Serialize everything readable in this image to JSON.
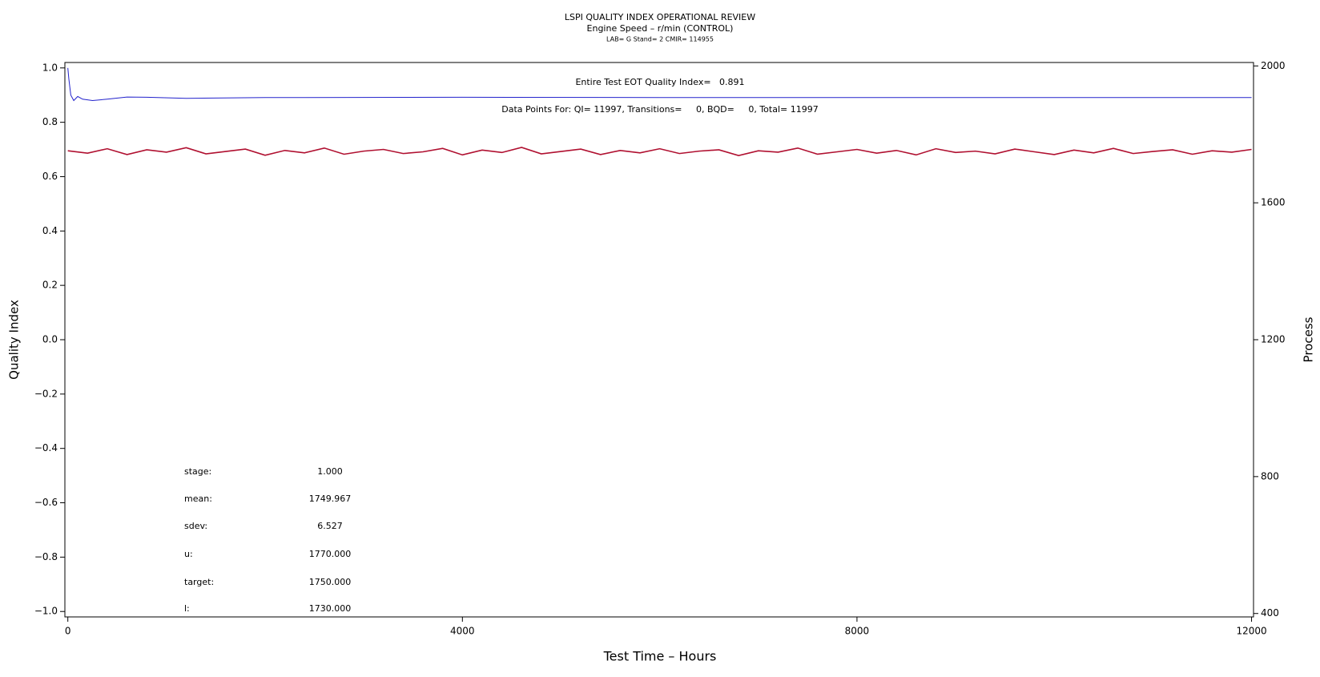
{
  "chart_data": {
    "type": "line",
    "title": "LSPI QUALITY INDEX OPERATIONAL REVIEW",
    "subtitle": "Engine Speed – r/min (CONTROL)",
    "subtitle2": "LAB= G Stand= 2 CMIR= 114955",
    "annotations": [
      "Entire Test EOT Quality Index=   0.891",
      "Data Points For: QI= 11997, Transitions=     0, BQD=     0, Total= 11997"
    ],
    "stats": [
      {
        "label": "stage:",
        "value": "1.000"
      },
      {
        "label": "mean:",
        "value": "1749.967"
      },
      {
        "label": "sdev:",
        "value": "6.527"
      },
      {
        "label": "u:",
        "value": "1770.000"
      },
      {
        "label": "target:",
        "value": "1750.000"
      },
      {
        "label": "l:",
        "value": "1730.000"
      }
    ],
    "x_label": "Test Time – Hours",
    "y_label": "Quality Index",
    "y2_label": "Process",
    "xlim": [
      -30,
      12020
    ],
    "xticks": [
      0,
      4000,
      8000,
      12000
    ],
    "ylim": [
      -1.02,
      1.02
    ],
    "yticks": [
      {
        "value": -1.0,
        "label": "−1.0"
      },
      {
        "value": -0.8,
        "label": "−0.8"
      },
      {
        "value": -0.6,
        "label": "−0.6"
      },
      {
        "value": -0.4,
        "label": "−0.4"
      },
      {
        "value": -0.2,
        "label": "−0.2"
      },
      {
        "value": 0,
        "label": "0.0"
      },
      0.2,
      0.4,
      0.6,
      0.8,
      {
        "value": 1,
        "label": "1.0"
      }
    ],
    "y2lim": [
      390,
      2010
    ],
    "y2ticks": [
      400,
      800,
      1200,
      1600,
      2000
    ],
    "series": [
      {
        "name": "Quality Index",
        "color": "#2222cc",
        "axis": "y",
        "x": [
          0,
          10,
          30,
          60,
          100,
          150,
          250,
          400,
          600,
          800,
          1200,
          2000,
          4000,
          6000,
          8000,
          10000,
          12000
        ],
        "values": [
          1.0,
          0.96,
          0.9,
          0.88,
          0.895,
          0.885,
          0.88,
          0.885,
          0.893,
          0.892,
          0.888,
          0.891,
          0.892,
          0.891,
          0.891,
          0.891,
          0.891
        ]
      },
      {
        "name": "Process",
        "color": "#b01030",
        "axis": "y2",
        "x": [
          0,
          200,
          400,
          600,
          800,
          1000,
          1200,
          1400,
          1600,
          1800,
          2000,
          2200,
          2400,
          2600,
          2800,
          3000,
          3200,
          3400,
          3600,
          3800,
          4000,
          4200,
          4400,
          4600,
          4800,
          5000,
          5200,
          5400,
          5600,
          5800,
          6000,
          6200,
          6400,
          6600,
          6800,
          7000,
          7200,
          7400,
          7600,
          7800,
          8000,
          8200,
          8400,
          8600,
          8800,
          9000,
          9200,
          9400,
          9600,
          9800,
          10000,
          10200,
          10400,
          10600,
          10800,
          11000,
          11200,
          11400,
          11600,
          11800,
          12000
        ],
        "values": [
          1752,
          1745,
          1758,
          1741,
          1755,
          1748,
          1761,
          1743,
          1750,
          1757,
          1739,
          1753,
          1746,
          1760,
          1742,
          1751,
          1756,
          1744,
          1749,
          1759,
          1740,
          1754,
          1747,
          1762,
          1743,
          1750,
          1757,
          1741,
          1753,
          1746,
          1758,
          1744,
          1751,
          1755,
          1738,
          1752,
          1748,
          1760,
          1742,
          1749,
          1756,
          1745,
          1753,
          1740,
          1758,
          1747,
          1751,
          1743,
          1757,
          1749,
          1741,
          1754,
          1746,
          1759,
          1744,
          1750,
          1755,
          1742,
          1752,
          1748,
          1756
        ]
      }
    ]
  }
}
